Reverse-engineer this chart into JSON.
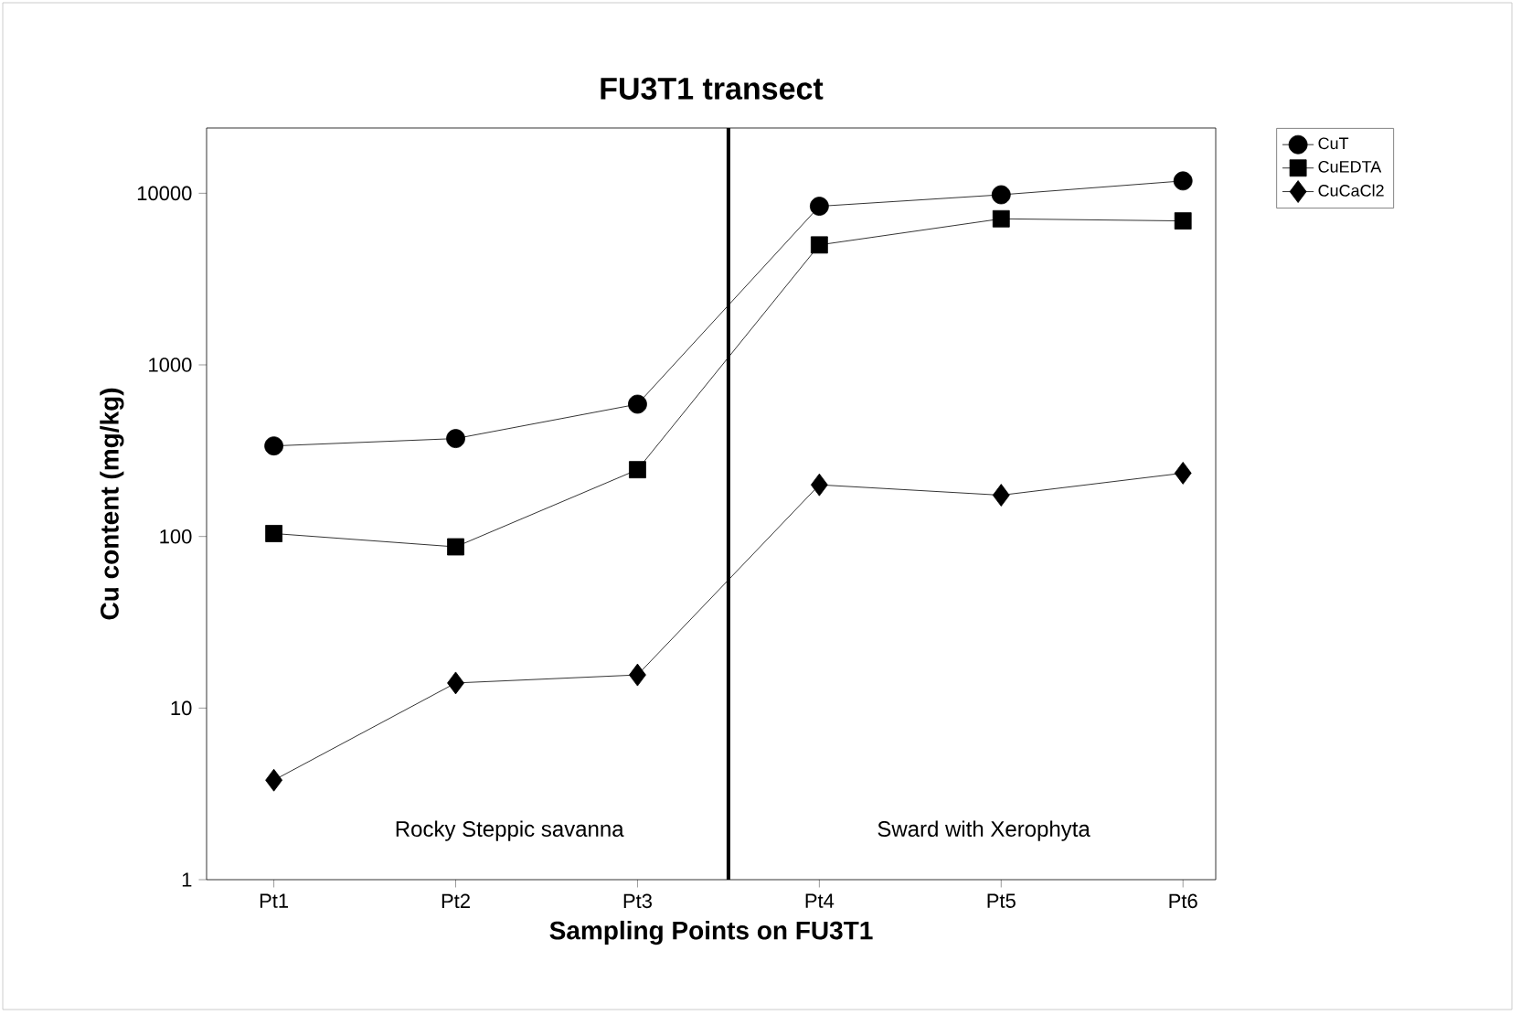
{
  "chart_data": {
    "type": "line",
    "title": "FU3T1 transect",
    "xlabel": "Sampling Points on FU3T1",
    "ylabel": "Cu content (mg/kg)",
    "categories": [
      "Pt1",
      "Pt2",
      "Pt3",
      "Pt4",
      "Pt5",
      "Pt6"
    ],
    "series": [
      {
        "name": "CuT",
        "color": "#000000",
        "marker": "circle",
        "values": [
          337,
          372,
          590,
          8400,
          9800,
          11800
        ]
      },
      {
        "name": "CuEDTA",
        "color": "#000000",
        "marker": "square",
        "values": [
          104,
          87,
          245,
          5000,
          7100,
          6900
        ]
      },
      {
        "name": "CuCaCl2",
        "color": "#000000",
        "marker": "diamond",
        "values": [
          3.8,
          14,
          15.6,
          200,
          174,
          234
        ]
      }
    ],
    "log": "y",
    "ylim": [
      1,
      24000
    ],
    "yticks": [
      1,
      10,
      100,
      1000,
      10000
    ],
    "annotations": [
      "Rocky Steppic savanna",
      "Sward with Xerophyta"
    ],
    "legend": "top right",
    "grid": false,
    "line_style": "solid"
  }
}
